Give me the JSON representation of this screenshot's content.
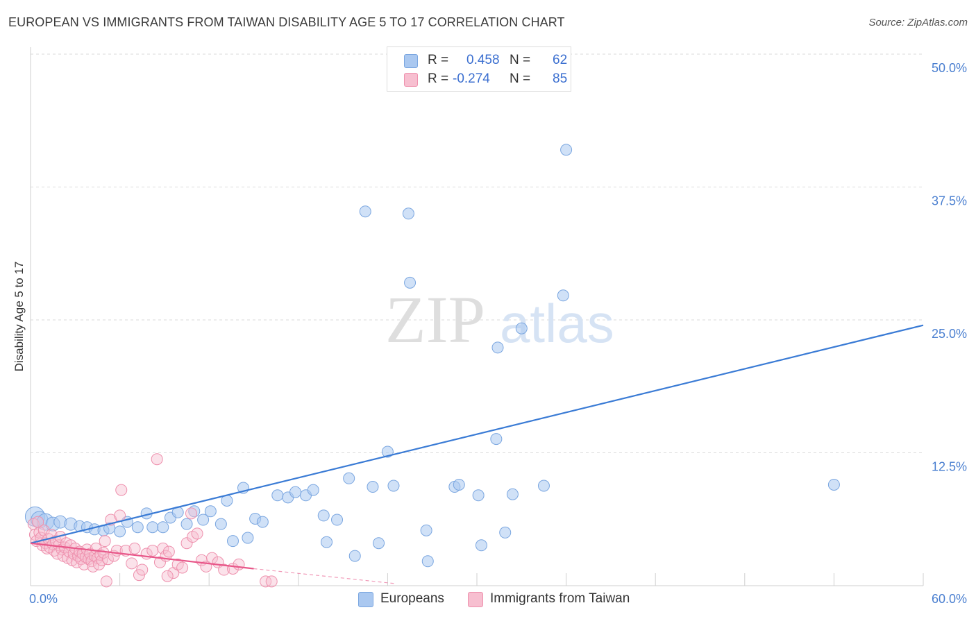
{
  "title": "EUROPEAN VS IMMIGRANTS FROM TAIWAN DISABILITY AGE 5 TO 17 CORRELATION CHART",
  "source": "Source: ZipAtlas.com",
  "watermark": {
    "zip": "ZIP",
    "atlas": "atlas"
  },
  "stats": [
    {
      "r_label": "R =",
      "r_value": "0.458",
      "n_label": "N =",
      "n_value": "62",
      "color": "#aac8f0",
      "border": "#7aa6e0"
    },
    {
      "r_label": "R =",
      "r_value": "-0.274",
      "n_label": "N =",
      "n_value": "85",
      "color": "#f7bfd0",
      "border": "#ee90ad"
    }
  ],
  "legend": [
    {
      "label": "Europeans",
      "color": "#aac8f0",
      "border": "#7aa6e0"
    },
    {
      "label": "Immigrants from Taiwan",
      "color": "#f7bfd0",
      "border": "#ee90ad"
    }
  ],
  "chart_data": {
    "type": "scatter",
    "title": "EUROPEAN VS IMMIGRANTS FROM TAIWAN DISABILITY AGE 5 TO 17 CORRELATION CHART",
    "xlabel": "",
    "ylabel": "Disability Age 5 to 17",
    "xlim": [
      0,
      60
    ],
    "ylim": [
      0,
      50
    ],
    "x_tick_labels": [
      {
        "value": 0,
        "label": "0.0%"
      },
      {
        "value": 60,
        "label": "60.0%"
      }
    ],
    "y_tick_labels": [
      {
        "value": 12.5,
        "label": "12.5%"
      },
      {
        "value": 25,
        "label": "25.0%"
      },
      {
        "value": 37.5,
        "label": "37.5%"
      },
      {
        "value": 50,
        "label": "50.0%"
      }
    ],
    "grid": true,
    "legend_position": "bottom",
    "series": [
      {
        "name": "Europeans",
        "color": "#7aa6e0",
        "line_color": "#3a7bd5",
        "trend": {
          "x": [
            0,
            60
          ],
          "y": [
            4.0,
            24.5
          ]
        },
        "points": [
          [
            0.3,
            6.5,
            14
          ],
          [
            0.6,
            6.2,
            12
          ],
          [
            1.0,
            6.0,
            12
          ],
          [
            1.5,
            5.8,
            10
          ],
          [
            2.0,
            6.0,
            9
          ],
          [
            2.7,
            5.8,
            9
          ],
          [
            3.3,
            5.6,
            8
          ],
          [
            3.8,
            5.5,
            8
          ],
          [
            4.3,
            5.3,
            8
          ],
          [
            4.9,
            5.2,
            8
          ],
          [
            5.3,
            5.4,
            8
          ],
          [
            6.0,
            5.1,
            8
          ],
          [
            6.5,
            6.0,
            8
          ],
          [
            7.2,
            5.5,
            8
          ],
          [
            7.8,
            6.8,
            8
          ],
          [
            8.2,
            5.5,
            8
          ],
          [
            8.9,
            5.5,
            8
          ],
          [
            9.4,
            6.4,
            8
          ],
          [
            9.9,
            6.9,
            8
          ],
          [
            10.5,
            5.8,
            8
          ],
          [
            11.0,
            7.0,
            8
          ],
          [
            11.6,
            6.2,
            8
          ],
          [
            12.1,
            7.0,
            8
          ],
          [
            12.8,
            5.8,
            8
          ],
          [
            13.2,
            8.0,
            8
          ],
          [
            13.6,
            4.2,
            8
          ],
          [
            14.3,
            9.2,
            8
          ],
          [
            14.6,
            4.5,
            8
          ],
          [
            15.1,
            6.3,
            8
          ],
          [
            15.6,
            6.0,
            8
          ],
          [
            16.6,
            8.5,
            8
          ],
          [
            17.3,
            8.3,
            8
          ],
          [
            17.8,
            8.8,
            8
          ],
          [
            18.5,
            8.5,
            8
          ],
          [
            19.0,
            9.0,
            8
          ],
          [
            19.7,
            6.6,
            8
          ],
          [
            19.9,
            4.1,
            8
          ],
          [
            20.6,
            6.2,
            8
          ],
          [
            21.4,
            10.1,
            8
          ],
          [
            21.8,
            2.8,
            8
          ],
          [
            22.5,
            35.2,
            8
          ],
          [
            23.0,
            9.3,
            8
          ],
          [
            23.4,
            4.0,
            8
          ],
          [
            24.0,
            12.6,
            8
          ],
          [
            24.4,
            9.4,
            8
          ],
          [
            25.4,
            35.0,
            8
          ],
          [
            25.5,
            28.5,
            8
          ],
          [
            26.6,
            5.2,
            8
          ],
          [
            26.7,
            2.3,
            8
          ],
          [
            28.5,
            9.3,
            8
          ],
          [
            28.8,
            9.5,
            8
          ],
          [
            30.1,
            8.5,
            8
          ],
          [
            30.3,
            3.8,
            8
          ],
          [
            31.3,
            13.8,
            8
          ],
          [
            31.4,
            22.4,
            8
          ],
          [
            31.9,
            5.0,
            8
          ],
          [
            32.4,
            8.6,
            8
          ],
          [
            33.0,
            24.2,
            8
          ],
          [
            34.5,
            9.4,
            8
          ],
          [
            35.8,
            27.3,
            8
          ],
          [
            36.0,
            41.0,
            8
          ],
          [
            54.0,
            9.5,
            8
          ]
        ]
      },
      {
        "name": "Immigrants from Taiwan",
        "color": "#ee90ad",
        "line_color": "#e8588a",
        "trend": {
          "x": [
            0,
            15
          ],
          "y": [
            4.0,
            1.6
          ]
        },
        "trend_extension": {
          "x": [
            15,
            24.5
          ],
          "y": [
            1.6,
            0.2
          ]
        },
        "points": [
          [
            0.2,
            5.8,
            8
          ],
          [
            0.3,
            4.8,
            8
          ],
          [
            0.4,
            4.2,
            8
          ],
          [
            0.5,
            6.0,
            8
          ],
          [
            0.6,
            5.0,
            8
          ],
          [
            0.7,
            4.5,
            8
          ],
          [
            0.8,
            3.8,
            8
          ],
          [
            0.9,
            5.2,
            8
          ],
          [
            1.0,
            4.0,
            8
          ],
          [
            1.1,
            3.5,
            8
          ],
          [
            1.2,
            4.4,
            8
          ],
          [
            1.3,
            3.6,
            8
          ],
          [
            1.4,
            4.8,
            8
          ],
          [
            1.5,
            3.9,
            8
          ],
          [
            1.6,
            3.3,
            8
          ],
          [
            1.7,
            4.2,
            8
          ],
          [
            1.8,
            3.0,
            8
          ],
          [
            1.9,
            3.8,
            8
          ],
          [
            2.0,
            4.6,
            8
          ],
          [
            2.1,
            3.4,
            8
          ],
          [
            2.2,
            2.8,
            8
          ],
          [
            2.3,
            3.6,
            8
          ],
          [
            2.4,
            4.0,
            8
          ],
          [
            2.5,
            2.6,
            8
          ],
          [
            2.6,
            3.2,
            8
          ],
          [
            2.7,
            3.8,
            8
          ],
          [
            2.8,
            2.4,
            8
          ],
          [
            2.9,
            3.0,
            8
          ],
          [
            3.0,
            3.5,
            8
          ],
          [
            3.1,
            2.2,
            8
          ],
          [
            3.2,
            2.8,
            8
          ],
          [
            3.3,
            3.2,
            8
          ],
          [
            3.4,
            2.5,
            8
          ],
          [
            3.5,
            3.0,
            8
          ],
          [
            3.6,
            2.0,
            8
          ],
          [
            3.7,
            2.7,
            8
          ],
          [
            3.8,
            3.4,
            8
          ],
          [
            3.9,
            2.5,
            8
          ],
          [
            4.0,
            3.0,
            8
          ],
          [
            4.1,
            2.3,
            8
          ],
          [
            4.2,
            1.8,
            8
          ],
          [
            4.3,
            2.8,
            8
          ],
          [
            4.4,
            3.5,
            8
          ],
          [
            4.5,
            2.6,
            8
          ],
          [
            4.6,
            2.0,
            8
          ],
          [
            4.7,
            2.9,
            8
          ],
          [
            4.8,
            2.4,
            8
          ],
          [
            4.9,
            3.1,
            8
          ],
          [
            5.0,
            4.2,
            8
          ],
          [
            5.1,
            0.4,
            8
          ],
          [
            5.2,
            2.5,
            8
          ],
          [
            5.4,
            6.2,
            8
          ],
          [
            5.6,
            2.8,
            8
          ],
          [
            5.8,
            3.3,
            8
          ],
          [
            6.0,
            6.6,
            8
          ],
          [
            6.1,
            9.0,
            8
          ],
          [
            6.4,
            3.3,
            8
          ],
          [
            6.8,
            2.1,
            8
          ],
          [
            7.0,
            3.5,
            8
          ],
          [
            7.3,
            1.0,
            8
          ],
          [
            7.5,
            1.5,
            8
          ],
          [
            7.8,
            3.0,
            8
          ],
          [
            8.2,
            3.3,
            8
          ],
          [
            8.5,
            11.9,
            8
          ],
          [
            8.7,
            2.2,
            8
          ],
          [
            8.9,
            3.5,
            8
          ],
          [
            9.1,
            2.8,
            8
          ],
          [
            9.3,
            3.2,
            8
          ],
          [
            9.6,
            1.2,
            8
          ],
          [
            9.9,
            2.0,
            8
          ],
          [
            10.2,
            1.7,
            8
          ],
          [
            10.5,
            4.0,
            8
          ],
          [
            10.8,
            6.8,
            8
          ],
          [
            10.9,
            4.6,
            8
          ],
          [
            11.2,
            4.9,
            8
          ],
          [
            11.5,
            2.4,
            8
          ],
          [
            11.8,
            1.8,
            8
          ],
          [
            12.2,
            2.6,
            8
          ],
          [
            12.6,
            2.2,
            8
          ],
          [
            13.0,
            1.5,
            8
          ],
          [
            13.6,
            1.6,
            8
          ],
          [
            14.0,
            2.0,
            8
          ],
          [
            15.8,
            0.4,
            8
          ],
          [
            16.2,
            0.4,
            8
          ],
          [
            9.2,
            0.9,
            8
          ]
        ]
      }
    ]
  }
}
